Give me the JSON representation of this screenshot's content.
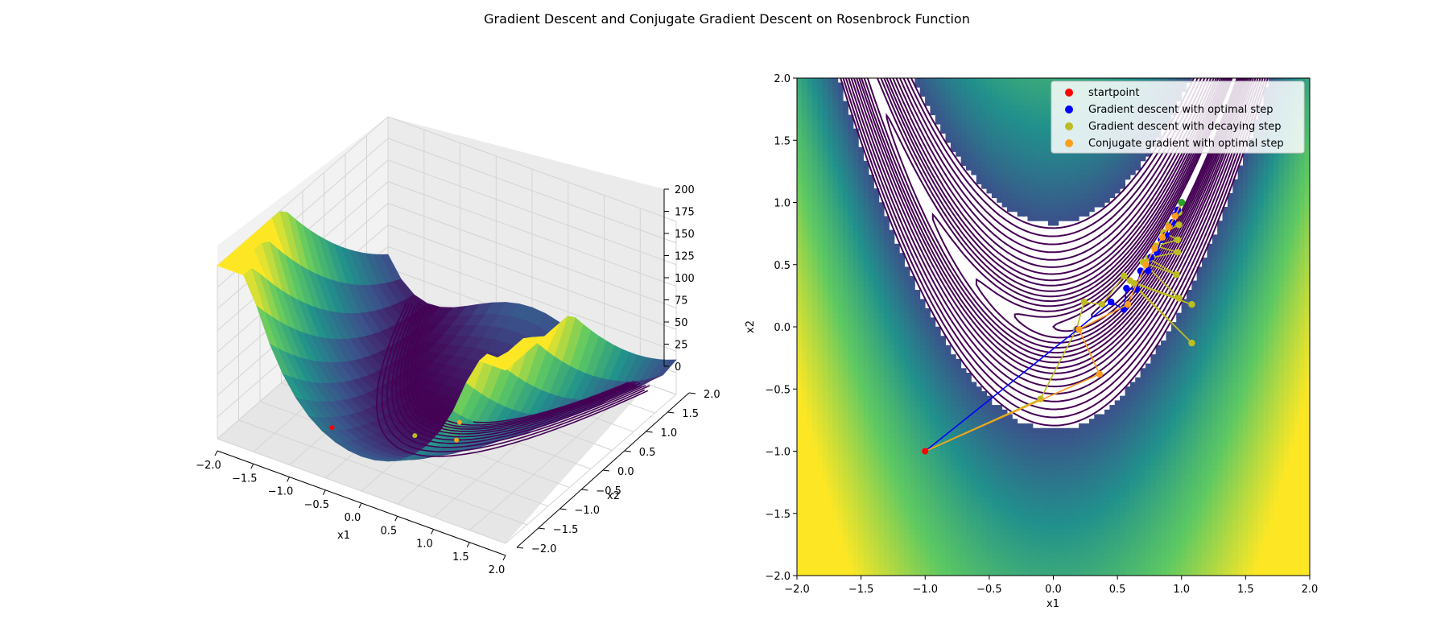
{
  "chart_data": [
    {
      "type": "surface3d",
      "function": "Rosenbrock",
      "xlabel": "x1",
      "ylabel": "x2",
      "xlim": [
        -2,
        2
      ],
      "ylim": [
        -2,
        2
      ],
      "zlim": [
        0,
        200
      ],
      "xticks": [
        "−2.0",
        "−1.5",
        "−1.0",
        "−0.5",
        "0.0",
        "0.5",
        "1.0",
        "1.5",
        "2.0"
      ],
      "yticks": [
        "−2.0",
        "−1.5",
        "−1.0",
        "−0.5",
        "0.0",
        "0.5",
        "1.0",
        "1.5",
        "2.0"
      ],
      "zticks": [
        "0",
        "25",
        "50",
        "75",
        "100",
        "125",
        "150",
        "175",
        "200"
      ],
      "grid": true,
      "colormap": "viridis"
    },
    {
      "type": "contour",
      "function": "Rosenbrock",
      "xlabel": "x1",
      "ylabel": "x2",
      "xlim": [
        -2,
        2
      ],
      "ylim": [
        -2,
        2
      ],
      "xticks": [
        "−2.0",
        "−1.5",
        "−1.0",
        "−0.5",
        "0.0",
        "0.5",
        "1.0",
        "1.5",
        "2.0"
      ],
      "yticks": [
        "−2.0",
        "−1.5",
        "−1.0",
        "−0.5",
        "0.0",
        "0.5",
        "1.0",
        "1.5",
        "2.0"
      ],
      "colormap": "viridis",
      "legend_position": "top-right",
      "series": [
        {
          "name": "startpoint",
          "color": "#ff0000",
          "points": [
            [
              -1.0,
              -1.0
            ]
          ]
        },
        {
          "name": "Gradient descent with optimal step",
          "color": "#0000ff",
          "points": [
            [
              -1.0,
              -1.0
            ],
            [
              0.19,
              -0.02
            ],
            [
              0.45,
              0.2
            ],
            [
              0.55,
              0.14
            ],
            [
              0.57,
              0.31
            ],
            [
              0.65,
              0.3
            ],
            [
              0.68,
              0.45
            ],
            [
              0.74,
              0.45
            ],
            [
              0.76,
              0.56
            ],
            [
              0.81,
              0.6
            ],
            [
              0.84,
              0.7
            ],
            [
              0.88,
              0.74
            ],
            [
              0.9,
              0.8
            ],
            [
              0.93,
              0.84
            ],
            [
              0.95,
              0.9
            ],
            [
              0.97,
              0.94
            ],
            [
              1.0,
              1.0
            ]
          ]
        },
        {
          "name": "Gradient descent with decaying step",
          "color": "#bcbd22",
          "points": [
            [
              -1.0,
              -1.0
            ],
            [
              -0.1,
              -0.58
            ],
            [
              0.18,
              -0.02
            ],
            [
              0.24,
              0.2
            ],
            [
              0.38,
              0.18
            ],
            [
              0.55,
              0.41
            ],
            [
              1.08,
              -0.13
            ],
            [
              0.6,
              0.37
            ],
            [
              1.08,
              0.18
            ],
            [
              0.63,
              0.35
            ],
            [
              0.98,
              0.23
            ],
            [
              0.7,
              0.52
            ],
            [
              0.96,
              0.42
            ],
            [
              0.74,
              0.55
            ],
            [
              0.97,
              0.6
            ],
            [
              0.8,
              0.65
            ],
            [
              0.97,
              0.7
            ],
            [
              0.86,
              0.76
            ],
            [
              0.98,
              0.82
            ],
            [
              0.9,
              0.82
            ],
            [
              0.98,
              0.92
            ],
            [
              1.0,
              1.0
            ]
          ]
        },
        {
          "name": "Conjugate gradient with optimal step",
          "color": "#ff9f1c",
          "points": [
            [
              -1.0,
              -1.0
            ],
            [
              0.36,
              -0.38
            ],
            [
              0.2,
              -0.02
            ],
            [
              0.58,
              0.18
            ],
            [
              0.72,
              0.5
            ],
            [
              0.79,
              0.63
            ],
            [
              0.85,
              0.72
            ],
            [
              0.9,
              0.8
            ],
            [
              0.95,
              0.89
            ],
            [
              1.0,
              1.0
            ]
          ]
        }
      ],
      "endpoint_color": "#2ca02c"
    }
  ],
  "suptitle": "Gradient Descent and Conjugate Gradient Descent on Rosenbrock Function"
}
